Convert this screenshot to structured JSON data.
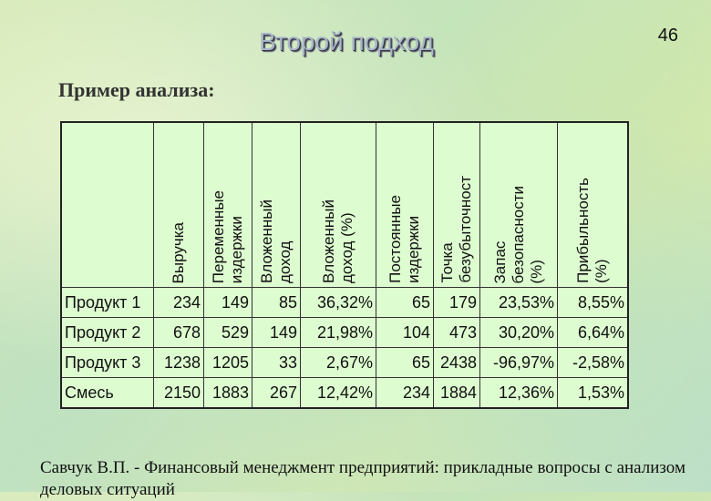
{
  "slide": {
    "title": "Второй подход",
    "page_number": "46",
    "subtitle": "Пример анализа:",
    "footer": "Савчук В.П. - Финансовый менеджмент предприятий: прикладные вопросы с анализом деловых ситуаций"
  },
  "table": {
    "headers": [
      "",
      "Выручка",
      "Переменные\nиздержки",
      "Вложенный\nдоход",
      "Вложенный\nдоход (%)",
      "Постоянные\nиздержки",
      "Точка\nбезубыточност",
      "Запас\nбезопасности\n(%)",
      "Прибыльность\n(%)"
    ],
    "rows": [
      [
        "Продукт 1",
        "234",
        "149",
        "85",
        "36,32%",
        "65",
        "179",
        "23,53%",
        "8,55%"
      ],
      [
        "Продукт 2",
        "678",
        "529",
        "149",
        "21,98%",
        "104",
        "473",
        "30,20%",
        "6,64%"
      ],
      [
        "Продукт 3",
        "1238",
        "1205",
        "33",
        "2,67%",
        "65",
        "2438",
        "-96,97%",
        "-2,58%"
      ],
      [
        "Смесь",
        "2150",
        "1883",
        "267",
        "12,42%",
        "234",
        "1884",
        "12,36%",
        "1,53%"
      ]
    ]
  }
}
